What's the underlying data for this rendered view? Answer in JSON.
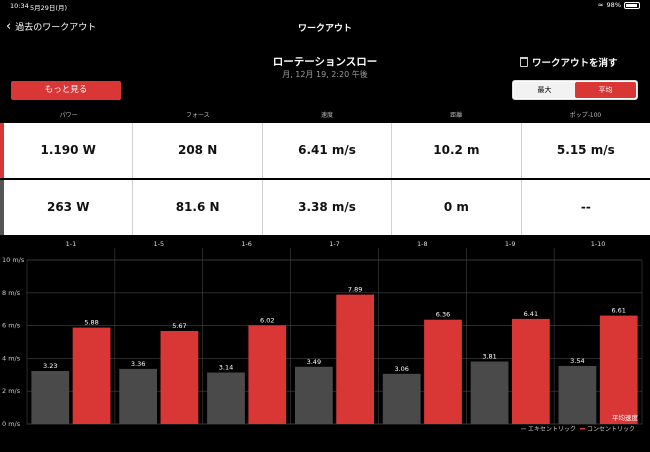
{
  "status": {
    "time": "10:34",
    "date": "5月29日(月)",
    "battery": "98%"
  },
  "nav": {
    "back_label": "過去のワークアウト",
    "title": "ワークアウト"
  },
  "workout": {
    "title": "ローテーションスロー",
    "subtitle": "月, 12月 19, 2:20 午後",
    "delete_label": "ワークアウトを消す"
  },
  "more_label": "もっと見る",
  "segment": {
    "options": [
      "最大",
      "平均"
    ],
    "selected": "平均"
  },
  "columns": [
    "パワー",
    "フォース",
    "速度",
    "距離",
    "ポップ-100"
  ],
  "rows": [
    {
      "name": "max",
      "values": [
        "1.190 W",
        "208 N",
        "6.41 m/s",
        "10.2 m",
        "5.15 m/s"
      ]
    },
    {
      "name": "avg",
      "values": [
        "263 W",
        "81.6 N",
        "3.38 m/s",
        "0 m",
        "--"
      ]
    }
  ],
  "colors": {
    "accent": "#d93636",
    "eccentric": "#4a4a4a",
    "concentric": "#d93636",
    "background": "#000000"
  },
  "chart_data": {
    "type": "bar",
    "categories": [
      "1-1",
      "1-5",
      "1-6",
      "1-7",
      "1-8",
      "1-9",
      "1-10"
    ],
    "series": [
      {
        "name": "エキセントリック",
        "values": [
          3.23,
          3.36,
          3.14,
          3.49,
          3.06,
          3.81,
          3.54
        ]
      },
      {
        "name": "コンセントリック",
        "values": [
          5.88,
          5.67,
          6.02,
          7.89,
          6.36,
          6.41,
          6.61
        ]
      }
    ],
    "yticks": [
      "0 m/s",
      "2 m/s",
      "4 m/s",
      "6 m/s",
      "8 m/s",
      "10 m/s"
    ],
    "ylim": [
      0,
      10
    ],
    "annotation": "平均速度",
    "legend_position": "bottom-right",
    "grid": true
  }
}
